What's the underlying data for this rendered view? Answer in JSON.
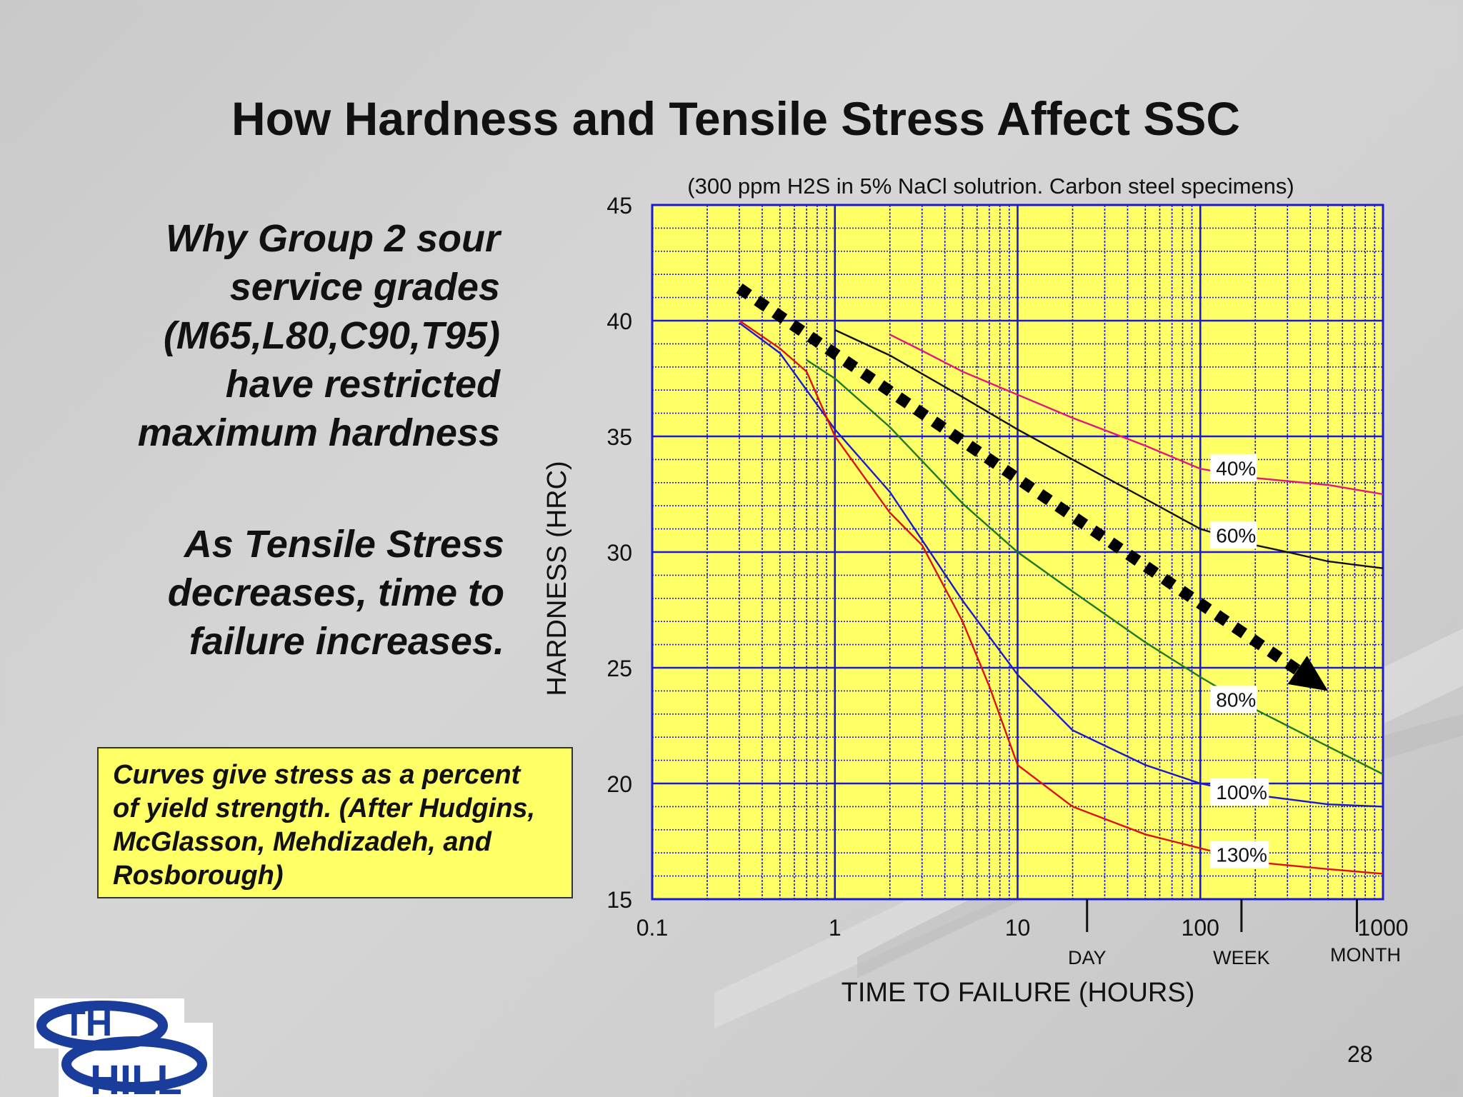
{
  "slide": {
    "title": "How Hardness and Tensile Stress Affect SSC",
    "bullet1": "Why Group 2 sour\nservice grades\n(M65,L80,C90,T95)\nhave restricted\nmaximum hardness",
    "bullet2": "As Tensile Stress\ndecreases, time to\nfailure increases.",
    "note": "Curves give stress as a percent\nof yield strength. (After Hudgins,\nMcGlasson, Mehdizadeh, and\nRosborough)",
    "page_number": "28",
    "logo_text": "TH HILL"
  },
  "colors": {
    "plot_background": "#ffff66",
    "grid": "#1a1ad6",
    "arrow": "#000000"
  },
  "chart_data": {
    "type": "line",
    "subtitle": "(300 ppm H2S in 5% NaCl solutrion.  Carbon steel specimens)",
    "xlabel": "TIME TO FAILURE (HOURS)",
    "ylabel": "HARDNESS (HRC)",
    "x_scale": "log",
    "xlim": [
      0.1,
      1000
    ],
    "ylim": [
      15,
      45
    ],
    "x_ticks": [
      {
        "value": 0.1,
        "label": "0.1"
      },
      {
        "value": 1,
        "label": "1"
      },
      {
        "value": 10,
        "label": "10"
      },
      {
        "value": 100,
        "label": "100"
      },
      {
        "value": 1000,
        "label": "1000"
      }
    ],
    "y_ticks": [
      15,
      20,
      25,
      30,
      35,
      40,
      45
    ],
    "time_markers": [
      {
        "value": 24,
        "label": "DAY"
      },
      {
        "value": 168,
        "label": "WEEK"
      },
      {
        "value": 720,
        "label": "MONTH"
      }
    ],
    "grid": true,
    "series": [
      {
        "name": "40%",
        "color": "#e0197a",
        "x": [
          2,
          3,
          5,
          10,
          20,
          50,
          100,
          200,
          500,
          1000
        ],
        "y": [
          39.4,
          38.7,
          37.8,
          36.8,
          35.8,
          34.6,
          33.6,
          33.2,
          32.9,
          32.5
        ]
      },
      {
        "name": "60%",
        "color": "#111111",
        "x": [
          1,
          2,
          5,
          10,
          20,
          50,
          100,
          200,
          300,
          500,
          1000
        ],
        "y": [
          39.6,
          38.5,
          36.7,
          35.3,
          34.0,
          32.3,
          31.0,
          30.3,
          30.0,
          29.6,
          29.3
        ]
      },
      {
        "name": "80%",
        "color": "#1f7a1f",
        "x": [
          0.7,
          1,
          2,
          5,
          10,
          20,
          50,
          100,
          200,
          500,
          1000
        ],
        "y": [
          38.3,
          37.5,
          35.4,
          32.1,
          30.0,
          28.3,
          26.1,
          24.6,
          23.2,
          21.6,
          20.4
        ]
      },
      {
        "name": "100%",
        "color": "#1a1acc",
        "x": [
          0.3,
          0.5,
          1,
          2,
          5,
          10,
          20,
          50,
          100,
          200,
          500,
          1000
        ],
        "y": [
          39.9,
          38.6,
          35.3,
          32.6,
          27.9,
          24.7,
          22.3,
          20.8,
          20.0,
          19.5,
          19.1,
          19.0
        ]
      },
      {
        "name": "130%",
        "color": "#dd1111",
        "x": [
          0.3,
          0.5,
          0.7,
          1,
          2,
          3,
          5,
          7,
          10,
          20,
          50,
          100,
          200,
          500,
          1000
        ],
        "y": [
          40.0,
          38.8,
          37.8,
          35.0,
          31.7,
          30.3,
          27.0,
          24.2,
          20.8,
          19.0,
          17.8,
          17.2,
          16.6,
          16.3,
          16.1
        ]
      }
    ],
    "annotations": [
      {
        "text": "40%",
        "x": 100,
        "y": 33.6
      },
      {
        "text": "60%",
        "x": 100,
        "y": 30.7
      },
      {
        "text": "80%",
        "x": 100,
        "y": 23.6
      },
      {
        "text": "100%",
        "x": 100,
        "y": 19.6
      },
      {
        "text": "130%",
        "x": 100,
        "y": 16.9
      }
    ],
    "trend_arrow": {
      "from": {
        "x": 0.3,
        "y": 41.4
      },
      "to": {
        "x": 500,
        "y": 24.0
      }
    }
  }
}
